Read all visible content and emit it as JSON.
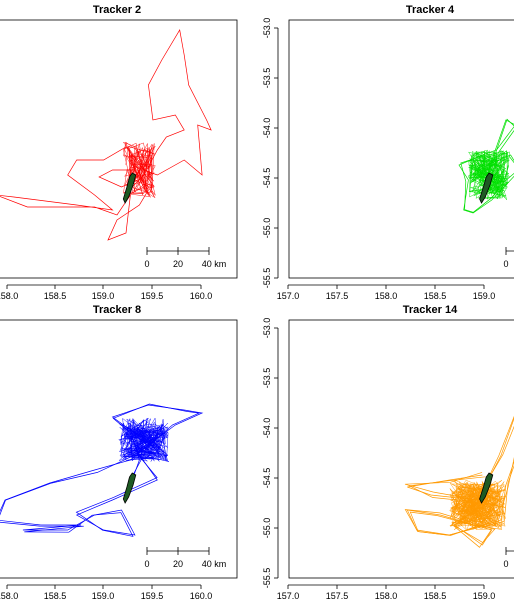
{
  "chart_data": [
    {
      "type": "scatter",
      "title": "Tracker 2",
      "color": "#ff0000",
      "x_ticks": [
        "158.0",
        "158.5",
        "159.0",
        "159.5",
        "160.0"
      ],
      "xlim": [
        157.4,
        160.1
      ],
      "ylim": [
        -55.55,
        -52.95
      ],
      "scalebar": {
        "labels": [
          "0",
          "20",
          "40 km"
        ]
      },
      "track": [
        [
          158.92,
          -54.62
        ],
        [
          159.05,
          -54.5
        ],
        [
          159.2,
          -54.25
        ],
        [
          159.3,
          -54.12
        ],
        [
          159.5,
          -54.05
        ],
        [
          159.4,
          -53.9
        ],
        [
          159.15,
          -53.95
        ],
        [
          159.1,
          -53.6
        ],
        [
          159.25,
          -53.35
        ],
        [
          159.45,
          -53.05
        ],
        [
          159.5,
          -53.3
        ],
        [
          159.55,
          -53.6
        ],
        [
          159.75,
          -53.95
        ],
        [
          159.8,
          -54.05
        ],
        [
          159.65,
          -54.0
        ],
        [
          159.7,
          -54.5
        ],
        [
          159.5,
          -54.35
        ],
        [
          159.2,
          -54.5
        ],
        [
          159.05,
          -54.45
        ],
        [
          158.85,
          -54.22
        ],
        [
          158.6,
          -54.35
        ],
        [
          158.3,
          -54.35
        ],
        [
          158.2,
          -54.5
        ],
        [
          158.5,
          -54.7
        ],
        [
          158.7,
          -54.85
        ],
        [
          158.3,
          -54.8
        ],
        [
          157.6,
          -54.72
        ],
        [
          157.4,
          -54.7
        ],
        [
          157.75,
          -54.82
        ],
        [
          158.5,
          -54.82
        ],
        [
          158.75,
          -54.9
        ],
        [
          158.9,
          -54.7
        ],
        [
          158.85,
          -55.08
        ],
        [
          158.65,
          -55.15
        ],
        [
          158.75,
          -54.95
        ],
        [
          159.0,
          -54.8
        ],
        [
          159.1,
          -54.65
        ],
        [
          158.95,
          -54.45
        ],
        [
          158.7,
          -54.45
        ],
        [
          158.55,
          -54.52
        ],
        [
          158.8,
          -54.62
        ],
        [
          158.98,
          -54.55
        ]
      ],
      "track_density": 1,
      "core": {
        "cx": 159.0,
        "cy": -54.45,
        "spread_x": 0.18,
        "spread_y": 0.28
      }
    },
    {
      "type": "scatter",
      "title": "Tracker 4",
      "color": "#00e000",
      "x_ticks": [
        "157.0",
        "157.5",
        "158.0",
        "158.5",
        "159.0"
      ],
      "y_ticks": [
        "-53.0",
        "-53.5",
        "-54.0",
        "-54.5",
        "-55.0",
        "-55.5"
      ],
      "xlim": [
        156.8,
        159.25
      ],
      "ylim": [
        -55.55,
        -52.95
      ],
      "scalebar": {
        "labels": [
          "0"
        ]
      },
      "track": [
        [
          158.85,
          -54.65
        ],
        [
          158.95,
          -54.35
        ],
        [
          159.1,
          -53.95
        ],
        [
          159.2,
          -54.0
        ],
        [
          159.0,
          -54.25
        ],
        [
          158.85,
          -54.3
        ],
        [
          158.6,
          -54.4
        ],
        [
          158.7,
          -54.55
        ],
        [
          158.65,
          -54.85
        ],
        [
          158.75,
          -54.88
        ],
        [
          158.95,
          -54.75
        ],
        [
          159.1,
          -54.6
        ],
        [
          159.25,
          -54.45
        ],
        [
          159.15,
          -54.3
        ],
        [
          158.9,
          -54.4
        ],
        [
          158.75,
          -54.5
        ]
      ],
      "track_density": 2,
      "core": {
        "cx": 158.92,
        "cy": -54.5,
        "spread_x": 0.22,
        "spread_y": 0.25
      }
    },
    {
      "type": "scatter",
      "title": "Tracker 8",
      "color": "#0000ff",
      "x_ticks": [
        "158.0",
        "158.5",
        "159.0",
        "159.5",
        "160.0"
      ],
      "xlim": [
        157.4,
        160.1
      ],
      "ylim": [
        -55.55,
        -52.95
      ],
      "scalebar": {
        "labels": [
          "0",
          "20",
          "40 km"
        ]
      },
      "track": [
        [
          158.9,
          -54.6
        ],
        [
          159.0,
          -54.35
        ],
        [
          158.9,
          -54.05
        ],
        [
          158.7,
          -53.92
        ],
        [
          159.1,
          -53.8
        ],
        [
          159.5,
          -53.85
        ],
        [
          159.7,
          -53.88
        ],
        [
          159.4,
          -54.0
        ],
        [
          159.1,
          -54.2
        ],
        [
          158.9,
          -54.35
        ],
        [
          158.5,
          -54.45
        ],
        [
          158.0,
          -54.58
        ],
        [
          157.5,
          -54.75
        ],
        [
          157.4,
          -54.95
        ],
        [
          157.9,
          -55.0
        ],
        [
          158.35,
          -55.0
        ],
        [
          157.7,
          -55.05
        ],
        [
          158.2,
          -55.05
        ],
        [
          158.5,
          -54.9
        ],
        [
          158.8,
          -54.85
        ],
        [
          158.95,
          -55.1
        ],
        [
          158.6,
          -55.05
        ],
        [
          158.3,
          -54.9
        ],
        [
          158.7,
          -54.75
        ],
        [
          159.2,
          -54.55
        ],
        [
          159.0,
          -54.3
        ]
      ],
      "track_density": 2,
      "core": {
        "cx": 159.05,
        "cy": -54.15,
        "spread_x": 0.28,
        "spread_y": 0.22
      }
    },
    {
      "type": "scatter",
      "title": "Tracker 14",
      "color": "#ff9900",
      "x_ticks": [
        "157.0",
        "157.5",
        "158.0",
        "158.5",
        "159.0"
      ],
      "y_ticks": [
        "-53.0",
        "-53.5",
        "-54.0",
        "-54.5",
        "-55.0",
        "-55.5"
      ],
      "xlim": [
        156.8,
        159.25
      ],
      "ylim": [
        -55.55,
        -52.95
      ],
      "scalebar": {
        "labels": [
          "0"
        ]
      },
      "track": [
        [
          158.85,
          -54.5
        ],
        [
          158.5,
          -54.55
        ],
        [
          158.05,
          -54.62
        ],
        [
          158.3,
          -54.7
        ],
        [
          158.8,
          -54.75
        ],
        [
          159.05,
          -54.3
        ],
        [
          159.2,
          -53.9
        ],
        [
          159.25,
          -54.2
        ],
        [
          159.1,
          -54.6
        ],
        [
          159.05,
          -54.95
        ],
        [
          158.5,
          -55.1
        ],
        [
          158.15,
          -55.05
        ],
        [
          158.05,
          -54.85
        ],
        [
          158.4,
          -54.9
        ],
        [
          158.95,
          -55.05
        ],
        [
          158.85,
          -55.2
        ],
        [
          158.55,
          -55.0
        ],
        [
          158.9,
          -54.75
        ]
      ],
      "track_density": 3,
      "core": {
        "cx": 158.8,
        "cy": -54.8,
        "spread_x": 0.3,
        "spread_y": 0.25
      }
    }
  ],
  "island": {
    "color": "#1e5a23",
    "outline": [
      [
        158.92,
        -54.48
      ],
      [
        158.96,
        -54.5
      ],
      [
        158.93,
        -54.6
      ],
      [
        158.88,
        -54.72
      ],
      [
        158.84,
        -54.78
      ],
      [
        158.82,
        -54.74
      ],
      [
        158.86,
        -54.62
      ],
      [
        158.89,
        -54.52
      ]
    ]
  }
}
